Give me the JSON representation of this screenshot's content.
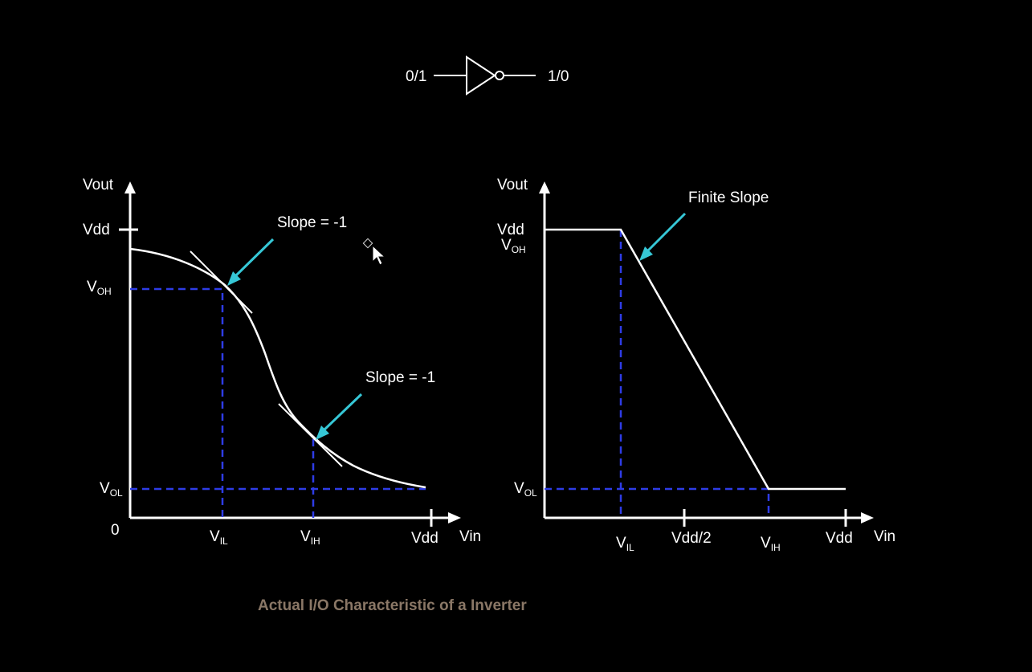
{
  "inverter": {
    "input_label": "0/1",
    "output_label": "1/0"
  },
  "left_graph": {
    "y_axis_label": "Vout",
    "x_axis_label": "Vin",
    "origin_label": "0",
    "vdd_y_label": "Vdd",
    "vdd_x_label": "Vdd",
    "voh_main": "V",
    "voh_sub": "OH",
    "vol_main": "V",
    "vol_sub": "OL",
    "vil_main": "V",
    "vil_sub": "IL",
    "vih_main": "V",
    "vih_sub": "IH",
    "slope1_label": "Slope = -1",
    "slope2_label": "Slope = -1"
  },
  "right_graph": {
    "y_axis_label": "Vout",
    "x_axis_label": "Vin",
    "vdd_y_label": "Vdd",
    "voh_main": "V",
    "voh_sub": "OH",
    "vol_main": "V",
    "vol_sub": "OL",
    "vil_main": "V",
    "vil_sub": "IL",
    "vih_main": "V",
    "vih_sub": "IH",
    "vdd_half_label": "Vdd/2",
    "vdd_x_label": "Vdd",
    "finite_slope_label": "Finite Slope"
  },
  "caption": "Actual I/O Characteristic of a Inverter",
  "colors": {
    "background": "#000000",
    "foreground": "#ffffff",
    "dashed_guides": "#2e3ce6",
    "pointer_arrows": "#36c7d6",
    "caption": "#8a7766"
  }
}
